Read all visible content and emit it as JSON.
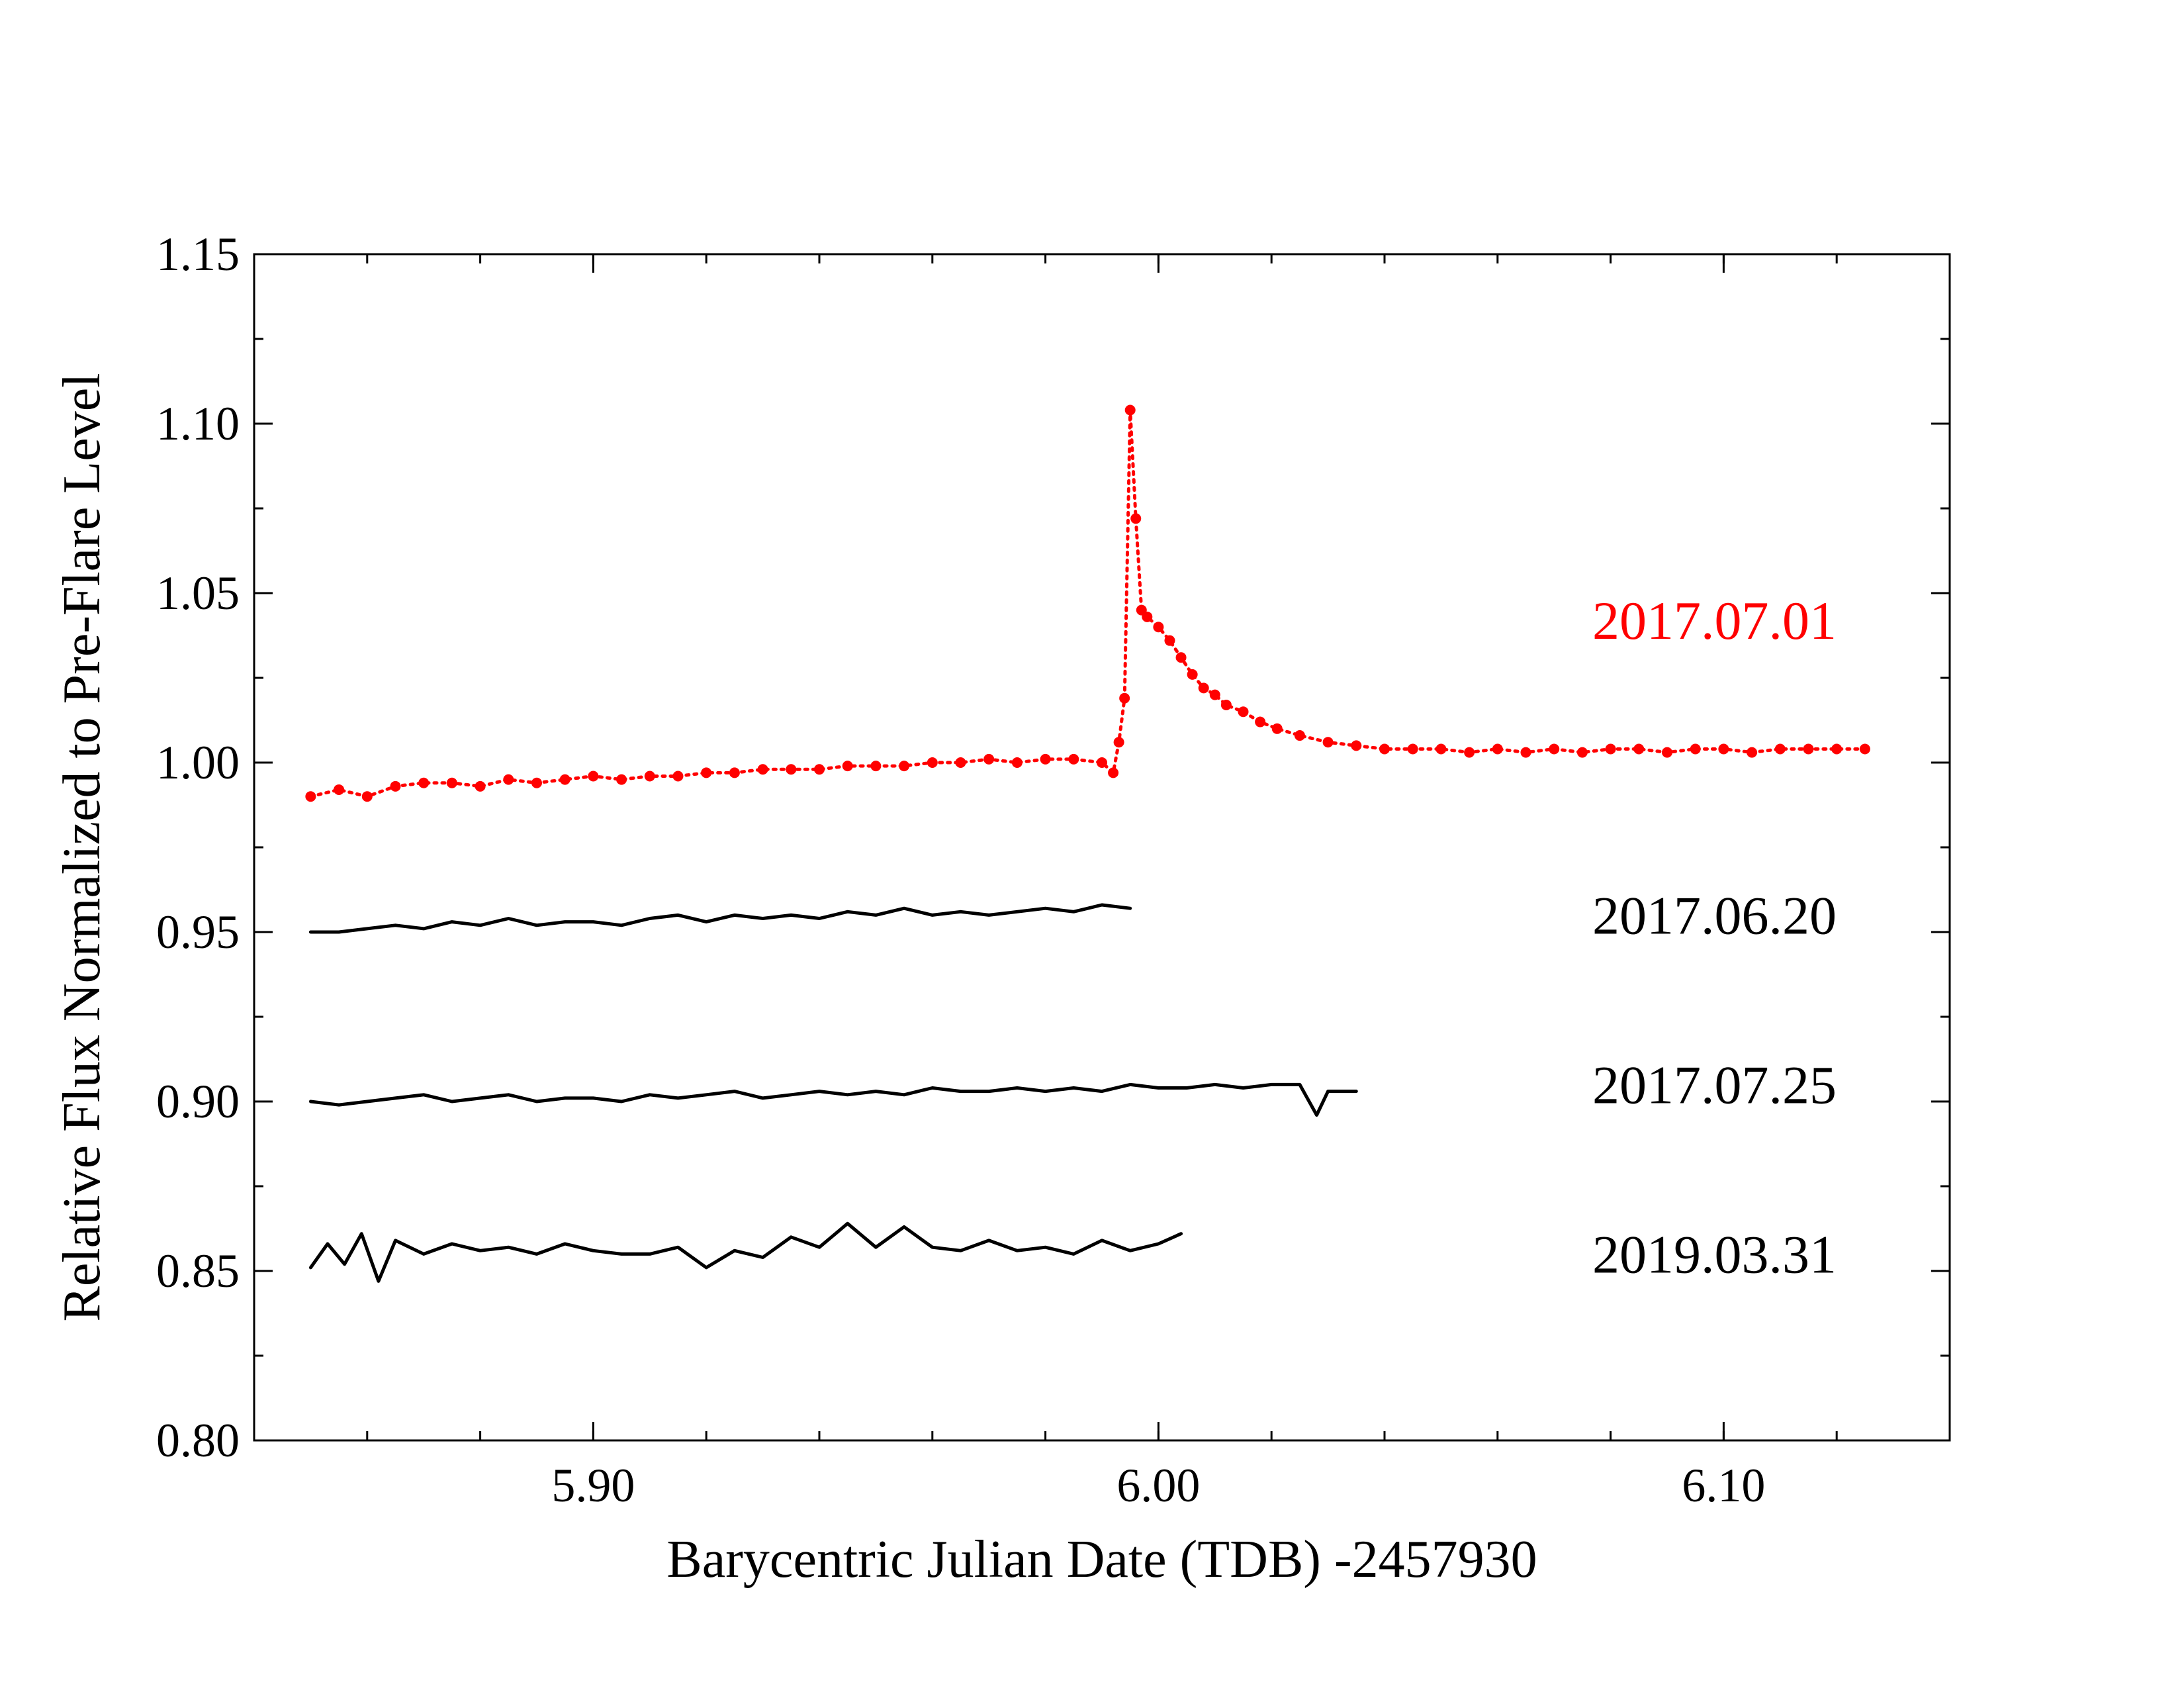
{
  "chart_data": {
    "type": "line",
    "title": "",
    "xlabel": "Barycentric Julian Date (TDB) -2457930",
    "ylabel": "Relative Flux Normalized to Pre-Flare Level",
    "xlim": [
      5.84,
      6.14
    ],
    "ylim": [
      0.8,
      1.15
    ],
    "x_major_ticks": [
      5.9,
      6.0,
      6.1
    ],
    "x_tick_labels": [
      "5.90",
      "6.00",
      "6.10"
    ],
    "x_minor_step": 0.02,
    "y_major_ticks": [
      0.8,
      0.85,
      0.9,
      0.95,
      1.0,
      1.05,
      1.1,
      1.15
    ],
    "y_tick_labels": [
      "0.80",
      "0.85",
      "0.90",
      "0.95",
      "1.00",
      "1.05",
      "1.10",
      "1.15"
    ],
    "y_minor_step": 0.025,
    "grid": false,
    "legend": "none; series identified by text labels at right",
    "series": [
      {
        "name": "2017.07.01",
        "color": "#ff0000",
        "style": "dotted-line-with-markers",
        "label_y": 1.042,
        "x": [
          5.85,
          5.855,
          5.86,
          5.865,
          5.87,
          5.875,
          5.88,
          5.885,
          5.89,
          5.895,
          5.9,
          5.905,
          5.91,
          5.915,
          5.92,
          5.925,
          5.93,
          5.935,
          5.94,
          5.945,
          5.95,
          5.955,
          5.96,
          5.965,
          5.97,
          5.975,
          5.98,
          5.985,
          5.99,
          5.992,
          5.993,
          5.994,
          5.995,
          5.996,
          5.997,
          5.998,
          6.0,
          6.002,
          6.004,
          6.006,
          6.008,
          6.01,
          6.012,
          6.015,
          6.018,
          6.021,
          6.025,
          6.03,
          6.035,
          6.04,
          6.045,
          6.05,
          6.055,
          6.06,
          6.065,
          6.07,
          6.075,
          6.08,
          6.085,
          6.09,
          6.095,
          6.1,
          6.105,
          6.11,
          6.115,
          6.12,
          6.125
        ],
        "y": [
          0.99,
          0.992,
          0.99,
          0.993,
          0.994,
          0.994,
          0.993,
          0.995,
          0.994,
          0.995,
          0.996,
          0.995,
          0.996,
          0.996,
          0.997,
          0.997,
          0.998,
          0.998,
          0.998,
          0.999,
          0.999,
          0.999,
          1.0,
          1.0,
          1.001,
          1.0,
          1.001,
          1.001,
          1.0,
          0.997,
          1.006,
          1.019,
          1.104,
          1.072,
          1.045,
          1.043,
          1.04,
          1.036,
          1.031,
          1.026,
          1.022,
          1.02,
          1.017,
          1.015,
          1.012,
          1.01,
          1.008,
          1.006,
          1.005,
          1.004,
          1.004,
          1.004,
          1.003,
          1.004,
          1.003,
          1.004,
          1.003,
          1.004,
          1.004,
          1.003,
          1.004,
          1.004,
          1.003,
          1.004,
          1.004,
          1.004,
          1.004
        ]
      },
      {
        "name": "2017.06.20",
        "color": "#000000",
        "style": "solid-line",
        "label_y": 0.955,
        "x": [
          5.85,
          5.855,
          5.86,
          5.865,
          5.87,
          5.875,
          5.88,
          5.885,
          5.89,
          5.895,
          5.9,
          5.905,
          5.91,
          5.915,
          5.92,
          5.925,
          5.93,
          5.935,
          5.94,
          5.945,
          5.95,
          5.955,
          5.96,
          5.965,
          5.97,
          5.975,
          5.98,
          5.985,
          5.99,
          5.995
        ],
        "y": [
          0.95,
          0.95,
          0.951,
          0.952,
          0.951,
          0.953,
          0.952,
          0.954,
          0.952,
          0.953,
          0.953,
          0.952,
          0.954,
          0.955,
          0.953,
          0.955,
          0.954,
          0.955,
          0.954,
          0.956,
          0.955,
          0.957,
          0.955,
          0.956,
          0.955,
          0.956,
          0.957,
          0.956,
          0.958,
          0.957
        ]
      },
      {
        "name": "2017.07.25",
        "color": "#000000",
        "style": "solid-line",
        "label_y": 0.905,
        "x": [
          5.85,
          5.855,
          5.86,
          5.865,
          5.87,
          5.875,
          5.88,
          5.885,
          5.89,
          5.895,
          5.9,
          5.905,
          5.91,
          5.915,
          5.92,
          5.925,
          5.93,
          5.935,
          5.94,
          5.945,
          5.95,
          5.955,
          5.96,
          5.965,
          5.97,
          5.975,
          5.98,
          5.985,
          5.99,
          5.995,
          6.0,
          6.005,
          6.01,
          6.015,
          6.02,
          6.025,
          6.028,
          6.03,
          6.035
        ],
        "y": [
          0.9,
          0.899,
          0.9,
          0.901,
          0.902,
          0.9,
          0.901,
          0.902,
          0.9,
          0.901,
          0.901,
          0.9,
          0.902,
          0.901,
          0.902,
          0.903,
          0.901,
          0.902,
          0.903,
          0.902,
          0.903,
          0.902,
          0.904,
          0.903,
          0.903,
          0.904,
          0.903,
          0.904,
          0.903,
          0.905,
          0.904,
          0.904,
          0.905,
          0.904,
          0.905,
          0.905,
          0.896,
          0.903,
          0.903
        ]
      },
      {
        "name": "2019.03.31",
        "color": "#000000",
        "style": "solid-line",
        "label_y": 0.855,
        "x": [
          5.85,
          5.853,
          5.856,
          5.859,
          5.862,
          5.865,
          5.87,
          5.875,
          5.88,
          5.885,
          5.89,
          5.895,
          5.9,
          5.905,
          5.91,
          5.915,
          5.92,
          5.925,
          5.93,
          5.935,
          5.94,
          5.945,
          5.95,
          5.955,
          5.96,
          5.965,
          5.97,
          5.975,
          5.98,
          5.985,
          5.99,
          5.995,
          6.0,
          6.004
        ],
        "y": [
          0.851,
          0.858,
          0.852,
          0.861,
          0.847,
          0.859,
          0.855,
          0.858,
          0.856,
          0.857,
          0.855,
          0.858,
          0.856,
          0.855,
          0.855,
          0.857,
          0.851,
          0.856,
          0.854,
          0.86,
          0.857,
          0.864,
          0.857,
          0.863,
          0.857,
          0.856,
          0.859,
          0.856,
          0.857,
          0.855,
          0.859,
          0.856,
          0.858,
          0.861
        ]
      }
    ]
  }
}
